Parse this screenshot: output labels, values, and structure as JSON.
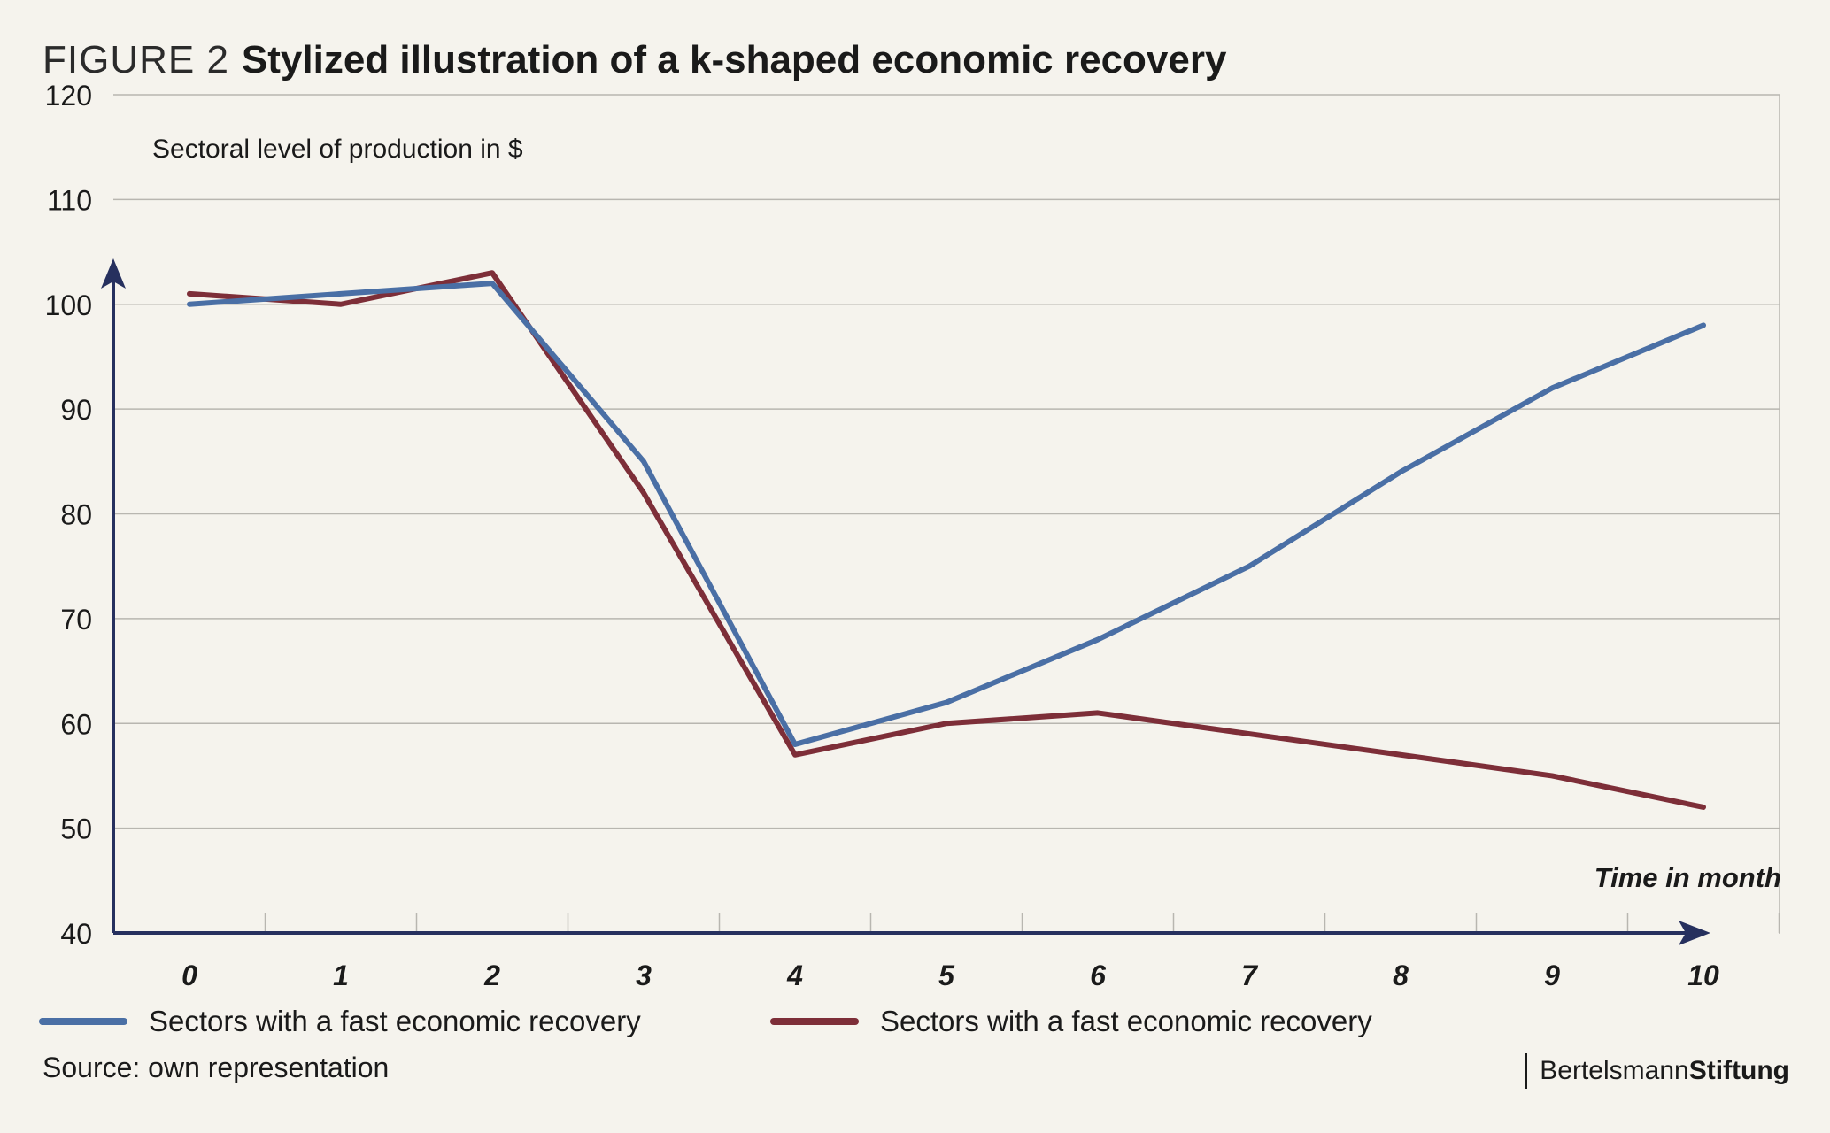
{
  "figure": {
    "label": "FIGURE 2",
    "title": "Stylized illustration of a k-shaped economic recovery"
  },
  "chart_data": {
    "type": "line",
    "ylabel": "Sectoral level of production in $",
    "xlabel": "Time in month",
    "x": [
      0,
      1,
      2,
      3,
      4,
      5,
      6,
      7,
      8,
      9,
      10
    ],
    "x_tick_labels": [
      "0",
      "1",
      "2",
      "3",
      "4",
      "5",
      "6",
      "7",
      "8",
      "9",
      "10"
    ],
    "ylim": [
      40,
      120
    ],
    "yticks": [
      40,
      50,
      60,
      70,
      80,
      90,
      100,
      110,
      120
    ],
    "y_tick_labels": [
      "40",
      "50",
      "60",
      "70",
      "80",
      "90",
      "100",
      "110",
      "120"
    ],
    "grid": true,
    "series": [
      {
        "name": "Sectors with a fast economic recovery",
        "color": "#4a6fa5",
        "values": [
          100,
          101,
          102,
          85,
          58,
          62,
          68,
          75,
          84,
          92,
          98
        ]
      },
      {
        "name": "Sectors with a fast economic recovery",
        "color": "#7d2e38",
        "values": [
          101,
          100,
          103,
          82,
          57,
          60,
          61,
          59,
          57,
          55,
          52
        ]
      }
    ],
    "legend_position": "bottom"
  },
  "axis_color": "#26305e",
  "footer": {
    "source": "Source: own representation",
    "brand_regular": "Bertelsmann",
    "brand_bold": "Stiftung"
  }
}
